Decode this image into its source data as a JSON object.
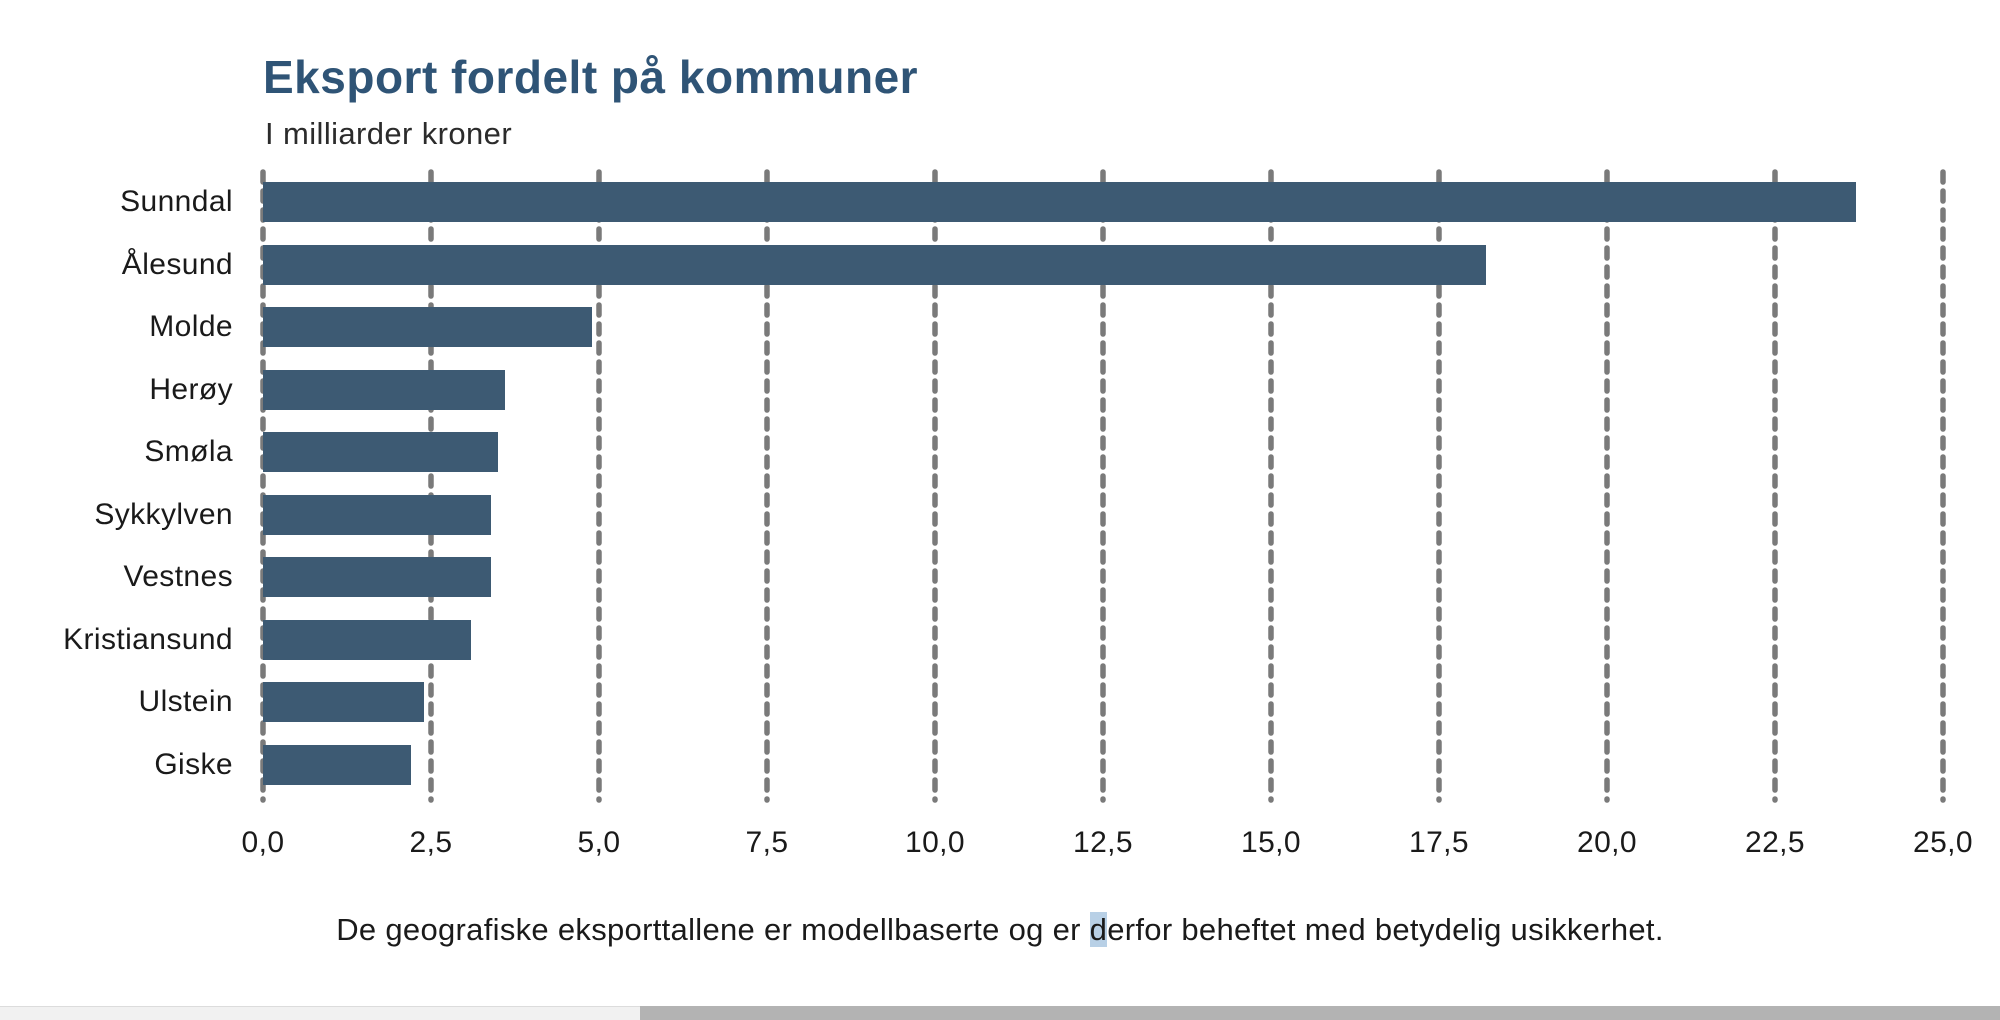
{
  "header": {
    "title": "Eksport fordelt på kommuner",
    "subtitle": "I milliarder kroner"
  },
  "chart_data": {
    "type": "bar",
    "orientation": "horizontal",
    "title": "Eksport fordelt på kommuner",
    "subtitle": "I milliarder kroner",
    "unit": "milliarder kroner",
    "categories": [
      "Sunndal",
      "Ålesund",
      "Molde",
      "Herøy",
      "Smøla",
      "Sykkylven",
      "Vestnes",
      "Kristiansund",
      "Ulstein",
      "Giske"
    ],
    "values": [
      23.7,
      18.2,
      4.9,
      3.6,
      3.5,
      3.4,
      3.4,
      3.1,
      2.4,
      2.2
    ],
    "xlim": [
      0,
      25
    ],
    "x_tick_values": [
      0,
      2.5,
      5,
      7.5,
      10,
      12.5,
      15,
      17.5,
      20,
      22.5,
      25
    ],
    "x_tick_labels": [
      "0,0",
      "2,5",
      "5,0",
      "7,5",
      "10,0",
      "12,5",
      "15,0",
      "17,5",
      "20,0",
      "22,5",
      "25,0"
    ],
    "grid": "vertical-dashed-gray",
    "legend": "none"
  },
  "footnote": {
    "before_selection": "De geografiske eksporttallene er modellbaserte og er ",
    "selection": "d",
    "after_selection": "erfor beheftet med betydelig usikkerhet."
  },
  "colors": {
    "bar": "#3d5a73",
    "title": "#2f5476",
    "text": "#1a1a1a",
    "gridline": "#7a7a7a",
    "selection_highlight": "#b8d0e6",
    "scrollbar_track": "#f1f1f1",
    "scrollbar_thumb": "#b3b3b3"
  }
}
